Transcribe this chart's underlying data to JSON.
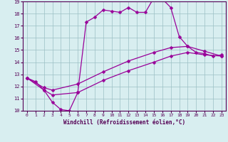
{
  "bg_color": "#d8eef0",
  "grid_color": "#b0d4d8",
  "line_color": "#990099",
  "xlabel": "Windchill (Refroidissement éolien,°C)",
  "xlim": [
    -0.5,
    23.5
  ],
  "ylim": [
    10,
    19
  ],
  "yticks": [
    10,
    11,
    12,
    13,
    14,
    15,
    16,
    17,
    18,
    19
  ],
  "xticks": [
    0,
    1,
    2,
    3,
    4,
    5,
    6,
    7,
    8,
    9,
    10,
    11,
    12,
    13,
    14,
    15,
    16,
    17,
    18,
    19,
    20,
    21,
    22,
    23
  ],
  "curve1_x": [
    0,
    1,
    2,
    3,
    4,
    5,
    6,
    7,
    8,
    9,
    10,
    11,
    12,
    13,
    14,
    15,
    16,
    17,
    18,
    19,
    20,
    21,
    22,
    23
  ],
  "curve1_y": [
    12.7,
    12.4,
    11.7,
    10.7,
    10.1,
    10.0,
    11.5,
    17.3,
    17.7,
    18.3,
    18.2,
    18.1,
    18.5,
    18.1,
    18.1,
    19.3,
    19.2,
    18.5,
    16.1,
    15.3,
    14.8,
    14.7,
    14.5,
    14.6
  ],
  "curve2_x": [
    0,
    2,
    3,
    6,
    9,
    12,
    15,
    17,
    19,
    21,
    23
  ],
  "curve2_y": [
    12.7,
    11.9,
    11.7,
    12.2,
    13.2,
    14.1,
    14.8,
    15.2,
    15.3,
    14.9,
    14.5
  ],
  "curve3_x": [
    0,
    2,
    3,
    6,
    9,
    12,
    15,
    17,
    19,
    21,
    23
  ],
  "curve3_y": [
    12.7,
    11.7,
    11.3,
    11.5,
    12.5,
    13.3,
    14.0,
    14.5,
    14.8,
    14.6,
    14.5
  ]
}
